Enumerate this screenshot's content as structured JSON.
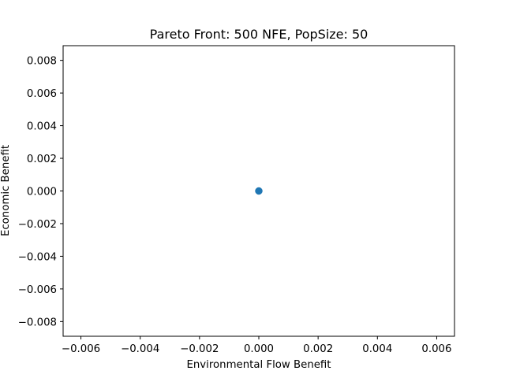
{
  "chart_data": {
    "type": "scatter",
    "title": "Pareto Front: 500 NFE, PopSize: 50",
    "xlabel": "Environmental Flow Benefit",
    "ylabel": "Economic Benefit",
    "xlim": [
      -0.0066,
      0.0066
    ],
    "ylim": [
      -0.0089,
      0.0089
    ],
    "xticks": [
      -0.006,
      -0.004,
      -0.002,
      0.0,
      0.002,
      0.004,
      0.006
    ],
    "xtick_labels": [
      "−0.006",
      "−0.004",
      "−0.002",
      "0.000",
      "0.002",
      "0.004",
      "0.006"
    ],
    "yticks": [
      -0.008,
      -0.006,
      -0.004,
      -0.002,
      0.0,
      0.002,
      0.004,
      0.006,
      0.008
    ],
    "ytick_labels": [
      "−0.008",
      "−0.006",
      "−0.004",
      "−0.002",
      "0.000",
      "0.002",
      "0.004",
      "0.006",
      "0.008"
    ],
    "grid": false,
    "series": [
      {
        "color": "#1f77b4",
        "points": [
          {
            "x": 0.0,
            "y": 0.0
          }
        ]
      }
    ]
  }
}
